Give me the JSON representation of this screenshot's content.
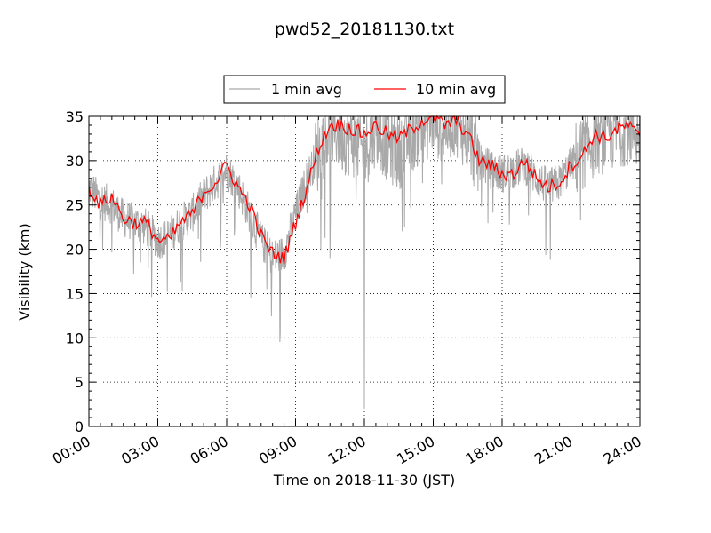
{
  "chart_data": {
    "type": "line",
    "title": "pwd52_20181130.txt",
    "xlabel": "Time on 2018-11-30 (JST)",
    "ylabel": "Visibility (km)",
    "xlim": [
      "00:00",
      "24:00"
    ],
    "ylim": [
      0,
      35
    ],
    "x_ticks": [
      "00:00",
      "03:00",
      "06:00",
      "09:00",
      "12:00",
      "15:00",
      "18:00",
      "21:00",
      "24:00"
    ],
    "y_ticks": [
      "0",
      "5",
      "10",
      "15",
      "20",
      "25",
      "30",
      "35"
    ],
    "grid": true,
    "legend_position": "top-center",
    "colors": {
      "1 min avg": "#a9a9a9",
      "10 min avg": "#ff0000"
    },
    "series": [
      {
        "name": "1 min avg",
        "x": [
          "00:00",
          "00:30",
          "01:00",
          "01:30",
          "02:00",
          "02:30",
          "03:00",
          "03:30",
          "04:00",
          "04:30",
          "05:00",
          "05:30",
          "06:00",
          "06:30",
          "07:00",
          "07:30",
          "08:00",
          "08:30",
          "09:00",
          "09:30",
          "10:00",
          "10:30",
          "11:00",
          "11:30",
          "12:00",
          "12:30",
          "13:00",
          "13:30",
          "14:00",
          "14:30",
          "15:00",
          "15:30",
          "16:00",
          "16:30",
          "17:00",
          "17:30",
          "18:00",
          "18:30",
          "19:00",
          "19:30",
          "20:00",
          "20:30",
          "21:00",
          "21:30",
          "22:00",
          "22:30",
          "23:00",
          "23:30",
          "24:00"
        ],
        "values": [
          27,
          25.5,
          25,
          23.5,
          23,
          22.5,
          21,
          21.5,
          23,
          24,
          26,
          27.5,
          29,
          27,
          24,
          21,
          19,
          19.5,
          24,
          28,
          31,
          34,
          33,
          32.5,
          31,
          34,
          32,
          31,
          33,
          34,
          35,
          34,
          35,
          33,
          30,
          29,
          28.5,
          29,
          29.5,
          28,
          27,
          27.5,
          29.5,
          31,
          32.5,
          33,
          33.5,
          34,
          33
        ],
        "spikes": [
          {
            "x": "07:45",
            "value": 15.5
          },
          {
            "x": "10:30",
            "value": 19
          },
          {
            "x": "12:00",
            "value": 2
          },
          {
            "x": "13:45",
            "value": 22.5
          },
          {
            "x": "02:15",
            "value": 18.5
          },
          {
            "x": "19:15",
            "value": 25
          }
        ]
      },
      {
        "name": "10 min avg",
        "x": [
          "00:00",
          "00:30",
          "01:00",
          "01:30",
          "02:00",
          "02:30",
          "03:00",
          "03:30",
          "04:00",
          "04:30",
          "05:00",
          "05:30",
          "06:00",
          "06:30",
          "07:00",
          "07:30",
          "08:00",
          "08:30",
          "09:00",
          "09:30",
          "10:00",
          "10:30",
          "11:00",
          "11:30",
          "12:00",
          "12:30",
          "13:00",
          "13:30",
          "14:00",
          "14:30",
          "15:00",
          "15:30",
          "16:00",
          "16:30",
          "17:00",
          "17:30",
          "18:00",
          "18:30",
          "19:00",
          "19:30",
          "20:00",
          "20:30",
          "21:00",
          "21:30",
          "22:00",
          "22:30",
          "23:00",
          "23:30",
          "24:00"
        ],
        "values": [
          27,
          25,
          26,
          23.5,
          23,
          23,
          21,
          21,
          23,
          24,
          26.5,
          27.5,
          29.5,
          27,
          25,
          21.5,
          19.5,
          19,
          23,
          27,
          31.5,
          34,
          34,
          33.5,
          33,
          34,
          33,
          32.5,
          33.5,
          34.5,
          35,
          34,
          34.5,
          33,
          30,
          29.5,
          28.5,
          28.5,
          30,
          28,
          27,
          27.5,
          29.5,
          30.5,
          33,
          32.5,
          33.5,
          34,
          32.5
        ]
      }
    ]
  }
}
